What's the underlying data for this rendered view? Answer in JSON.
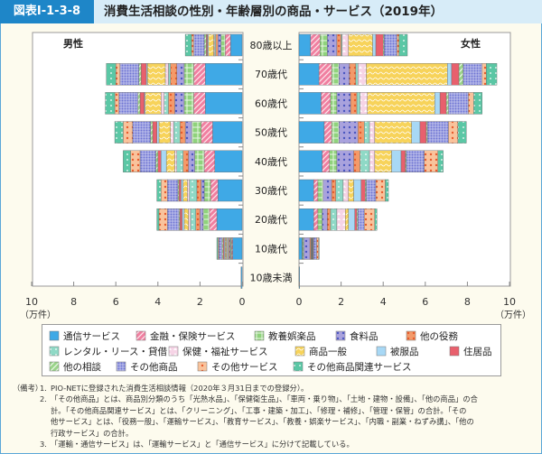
{
  "header": {
    "figure_id": "図表Ⅰ-1-3-8",
    "title": "消費生活相談の性別・年齢層別の商品・サービス（2019年）"
  },
  "chart_data": {
    "type": "bar",
    "orientation": "horizontal-stacked-population-pyramid",
    "title": "消費生活相談の性別・年齢層別の商品・サービス（2019年）",
    "unit": "（万件）",
    "xlim": [
      0,
      10
    ],
    "xticks": [
      0,
      2,
      4,
      6,
      8,
      10
    ],
    "left_panel_label": "男性",
    "right_panel_label": "女性",
    "categories": [
      "80歳以上",
      "70歳代",
      "60歳代",
      "50歳代",
      "40歳代",
      "30歳代",
      "20歳代",
      "10歳代",
      "10歳未満"
    ],
    "series_names": [
      "通信サービス",
      "金融・保険サービス",
      "教養娯楽品",
      "食料品",
      "他の役務",
      "レンタル・リース・貸借",
      "保健・福祉サービス",
      "商品一般",
      "被服品",
      "住居品",
      "他の相談",
      "その他商品",
      "その他サービス",
      "その他商品関連サービス"
    ],
    "series_colors": [
      "#3fa9e6",
      "#f07fa0",
      "#8fd27c",
      "#a9a2dd",
      "#f49a6a",
      "#8fd9c6",
      "#f6d4e6",
      "#f7d35a",
      "#a8d8f5",
      "#e8606d",
      "#9ad48a",
      "#6e74d3",
      "#f9c39c",
      "#5bc7a5"
    ],
    "male": [
      [
        0.55,
        0.25,
        0.2,
        0.15,
        0.1,
        0.05,
        0.05,
        0.25,
        0.05,
        0.05,
        0.1,
        0.5,
        0.1,
        0.3
      ],
      [
        1.75,
        0.55,
        0.45,
        0.35,
        0.3,
        0.1,
        0.15,
        0.85,
        0.05,
        0.25,
        0.1,
        0.9,
        0.2,
        0.45
      ],
      [
        1.75,
        0.55,
        0.45,
        0.45,
        0.3,
        0.2,
        0.15,
        0.75,
        0.05,
        0.2,
        0.1,
        0.9,
        0.2,
        0.45
      ],
      [
        1.4,
        0.55,
        0.45,
        0.3,
        0.25,
        0.3,
        0.15,
        0.55,
        0.1,
        0.2,
        0.1,
        0.85,
        0.45,
        0.4
      ],
      [
        1.3,
        0.5,
        0.45,
        0.3,
        0.25,
        0.3,
        0.1,
        0.4,
        0.25,
        0.15,
        0.1,
        0.75,
        0.45,
        0.35
      ],
      [
        1.15,
        0.35,
        0.3,
        0.15,
        0.2,
        0.35,
        0.1,
        0.2,
        0.1,
        0.1,
        0.05,
        0.5,
        0.3,
        0.2
      ],
      [
        1.2,
        0.35,
        0.3,
        0.15,
        0.2,
        0.25,
        0.1,
        0.2,
        0.1,
        0.1,
        0.05,
        0.55,
        0.4,
        0.1
      ],
      [
        0.45,
        0.05,
        0.05,
        0.05,
        0.05,
        0.05,
        0.05,
        0.05,
        0.05,
        0.05,
        0.05,
        0.15,
        0.05,
        0.05
      ],
      [
        0.05,
        0,
        0,
        0,
        0,
        0,
        0,
        0,
        0,
        0,
        0,
        0,
        0,
        0
      ]
    ],
    "female": [
      [
        0.55,
        0.45,
        0.35,
        0.45,
        0.2,
        0.05,
        0.3,
        1.15,
        0.15,
        0.35,
        0.05,
        0.6,
        0.1,
        0.4
      ],
      [
        0.95,
        0.6,
        0.35,
        0.5,
        0.3,
        0.1,
        0.4,
        3.85,
        0.2,
        0.35,
        0.2,
        0.9,
        0.2,
        0.5
      ],
      [
        1.05,
        0.45,
        0.3,
        0.65,
        0.3,
        0.15,
        0.35,
        3.2,
        0.25,
        0.3,
        0.1,
        0.95,
        0.25,
        0.4
      ],
      [
        1.2,
        0.35,
        0.35,
        0.9,
        0.3,
        0.25,
        0.25,
        1.75,
        0.4,
        0.3,
        0.05,
        1.0,
        0.45,
        0.4
      ],
      [
        1.1,
        0.35,
        0.35,
        0.8,
        0.3,
        0.45,
        0.25,
        0.8,
        0.45,
        0.2,
        0.05,
        0.85,
        0.65,
        0.25
      ],
      [
        0.7,
        0.2,
        0.25,
        0.4,
        0.2,
        0.35,
        0.25,
        0.25,
        0.35,
        0.2,
        0.05,
        0.45,
        0.45,
        0.15
      ],
      [
        0.7,
        0.2,
        0.2,
        0.25,
        0.15,
        0.3,
        0.4,
        0.15,
        0.3,
        0.1,
        0.05,
        0.3,
        0.5,
        0.1
      ],
      [
        0.15,
        0.02,
        0.05,
        0.3,
        0.05,
        0.02,
        0.02,
        0.02,
        0.02,
        0.02,
        0.02,
        0.15,
        0.1,
        0.02
      ],
      [
        0.03,
        0,
        0,
        0,
        0,
        0,
        0,
        0,
        0,
        0,
        0,
        0,
        0,
        0
      ]
    ],
    "grid": false,
    "legend_position": "bottom"
  },
  "legend": {
    "rows": [
      [
        "通信サービス",
        "金融・保険サービス",
        "教養娯楽品",
        "食料品",
        "他の役務"
      ],
      [
        "レンタル・リース・貸借",
        "保健・福祉サービス",
        "商品一般",
        "被服品",
        "住居品"
      ],
      [
        "他の相談",
        "その他商品",
        "その他サービス",
        "その他商品関連サービス"
      ]
    ]
  },
  "notes": {
    "label": "（備考）",
    "items": [
      {
        "num": "1.",
        "lines": [
          "PIO-NETに登録された消費生活相談情報（2020年３月31日までの登録分）。"
        ]
      },
      {
        "num": "2.",
        "lines": [
          "「その他商品」とは、商品別分類のうち「光熱水品」、「保健衛生品」、「車両・乗り物」、「土地・建物・設備」、「他の商品」の合",
          "計。「その他商品関連サービス」とは、「クリーニング」、「工事・建築・加工」、「修理・補修」、「管理・保管」の合計。「その",
          "他サービス」とは、「役務一般」、「運輸サービス」、「教育サービス」、「教養・娯楽サービス」、「内職・副業・ねずみ講」、「他の",
          "行政サービス」の合計。"
        ]
      },
      {
        "num": "3.",
        "lines": [
          "「運輸・通信サービス」は、「運輸サービス」と「通信サービス」に分けて記載している。"
        ]
      }
    ]
  }
}
